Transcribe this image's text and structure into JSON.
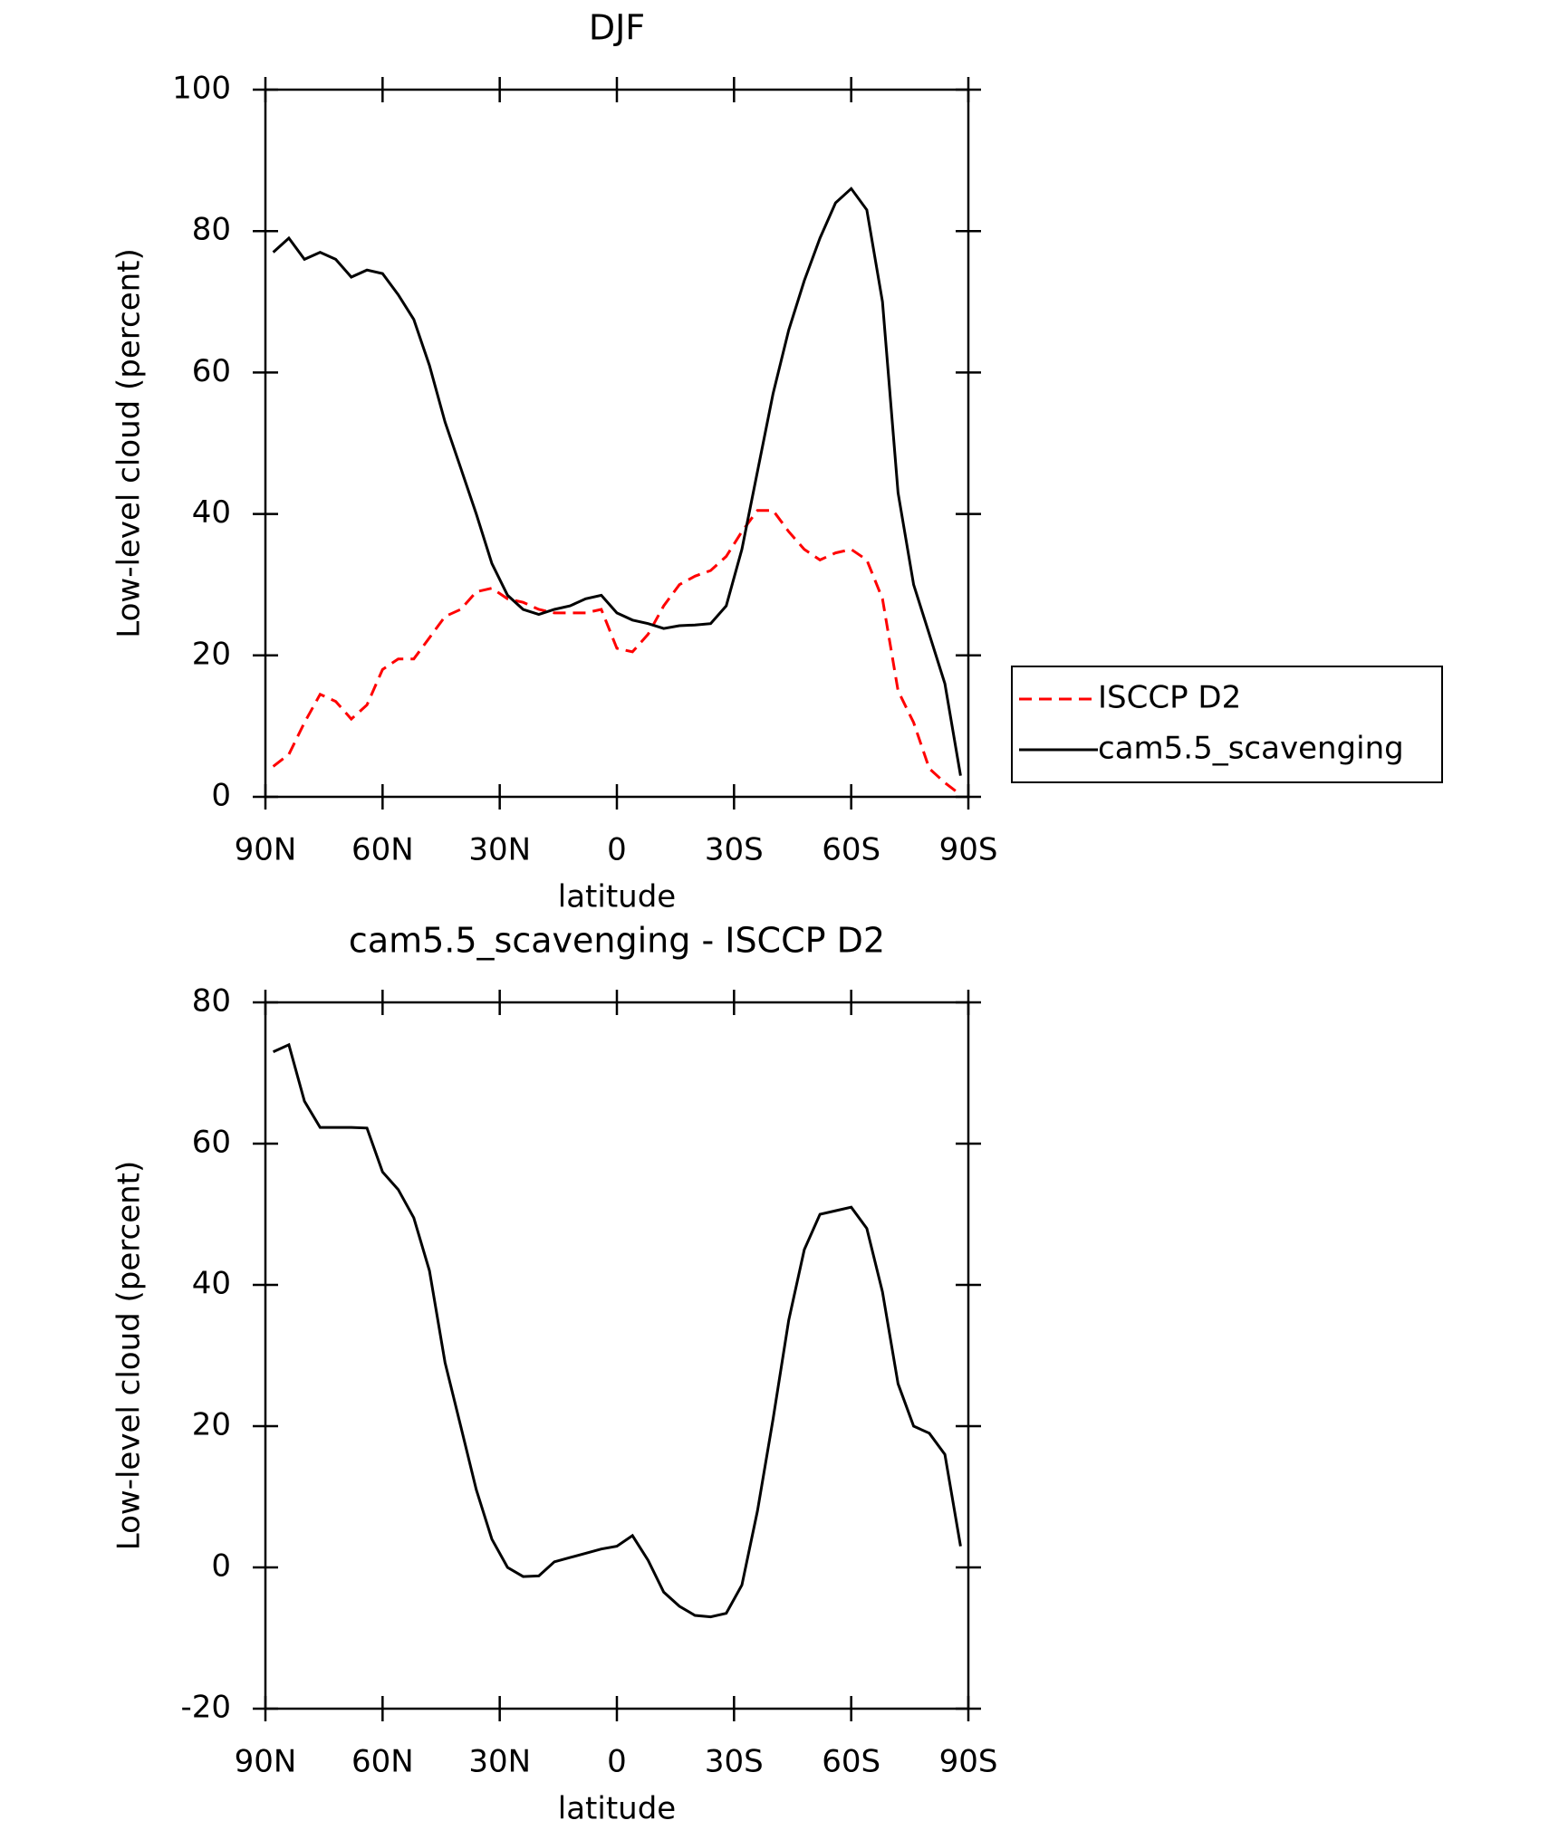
{
  "chart_data": [
    {
      "type": "line",
      "title": "DJF",
      "xlabel": "latitude",
      "ylabel": "Low-level cloud (percent)",
      "x": [
        88,
        84,
        80,
        76,
        72,
        68,
        64,
        60,
        56,
        52,
        48,
        44,
        40,
        36,
        32,
        28,
        24,
        20,
        16,
        12,
        8,
        4,
        0,
        -4,
        -8,
        -12,
        -16,
        -20,
        -24,
        -28,
        -32,
        -36,
        -40,
        -44,
        -48,
        -52,
        -56,
        -60,
        -64,
        -68,
        -72,
        -76,
        -80,
        -84,
        -88
      ],
      "series": [
        {
          "name": "ISCCP D2",
          "color": "#ff0000",
          "dashed": true,
          "values": [
            4.3,
            6,
            10.5,
            14.5,
            13.5,
            11,
            13,
            18,
            19.5,
            19.5,
            22.5,
            25.5,
            26.5,
            29,
            29.5,
            28,
            27.5,
            26.5,
            26,
            26,
            26,
            26.5,
            21,
            20.5,
            23,
            27,
            30,
            31.2,
            32,
            34,
            37.5,
            40.5,
            40.5,
            37.5,
            35,
            33.5,
            34.5,
            35,
            33.5,
            28,
            15,
            10.5,
            4,
            2,
            0.3
          ]
        },
        {
          "name": "cam5.5_scavenging",
          "color": "#000000",
          "dashed": false,
          "values": [
            77,
            79,
            76,
            77,
            76,
            73.5,
            74.5,
            74,
            71,
            67.5,
            61,
            53,
            46.5,
            40,
            33,
            28.5,
            26.5,
            25.8,
            26.5,
            27,
            28,
            28.5,
            26,
            25,
            24.5,
            23.8,
            24.2,
            24.3,
            24.5,
            27,
            35,
            46,
            57,
            66,
            73,
            79,
            84,
            86,
            83,
            70,
            43,
            30,
            23,
            16,
            3
          ]
        }
      ],
      "xlim": [
        90,
        -90
      ],
      "xticks": [
        {
          "value": 90,
          "label": "90N"
        },
        {
          "value": 60,
          "label": "60N"
        },
        {
          "value": 30,
          "label": "30N"
        },
        0,
        {
          "value": -30,
          "label": "30S"
        },
        {
          "value": -60,
          "label": "60S"
        },
        {
          "value": -90,
          "label": "90S"
        }
      ],
      "ylim": [
        0,
        100
      ],
      "yticks": [
        0,
        20,
        40,
        60,
        80,
        100
      ],
      "legend": "right"
    },
    {
      "type": "line",
      "title": "cam5.5_scavenging - ISCCP D2",
      "xlabel": "latitude",
      "ylabel": "Low-level cloud (percent)",
      "x": [
        88,
        84,
        80,
        76,
        72,
        68,
        64,
        60,
        56,
        52,
        48,
        44,
        40,
        36,
        32,
        28,
        24,
        20,
        16,
        12,
        8,
        4,
        0,
        -4,
        -8,
        -12,
        -16,
        -20,
        -24,
        -28,
        -32,
        -36,
        -40,
        -44,
        -48,
        -52,
        -56,
        -60,
        -64,
        -68,
        -72,
        -76,
        -80,
        -84,
        -88
      ],
      "series": [
        {
          "color": "#000000",
          "dashed": false,
          "values": [
            73,
            74,
            66,
            62.3,
            62.3,
            62.3,
            62.2,
            56,
            53.5,
            49.5,
            42,
            29,
            20,
            11,
            4,
            0,
            -1.3,
            -1.2,
            0.8,
            1.4,
            2,
            2.6,
            3,
            4.5,
            1,
            -3.5,
            -5.5,
            -6.8,
            -7,
            -6.5,
            -2.5,
            8,
            21,
            35,
            45,
            50,
            50.5,
            51,
            48,
            39,
            26,
            20,
            19,
            16,
            3
          ]
        }
      ],
      "xlim": [
        90,
        -90
      ],
      "xticks": [
        {
          "value": 90,
          "label": "90N"
        },
        {
          "value": 60,
          "label": "60N"
        },
        {
          "value": 30,
          "label": "30N"
        },
        0,
        {
          "value": -30,
          "label": "30S"
        },
        {
          "value": -60,
          "label": "60S"
        },
        {
          "value": -90,
          "label": "90S"
        }
      ],
      "ylim": [
        -20,
        80
      ],
      "yticks": [
        -20,
        0,
        20,
        40,
        60,
        80
      ]
    }
  ]
}
